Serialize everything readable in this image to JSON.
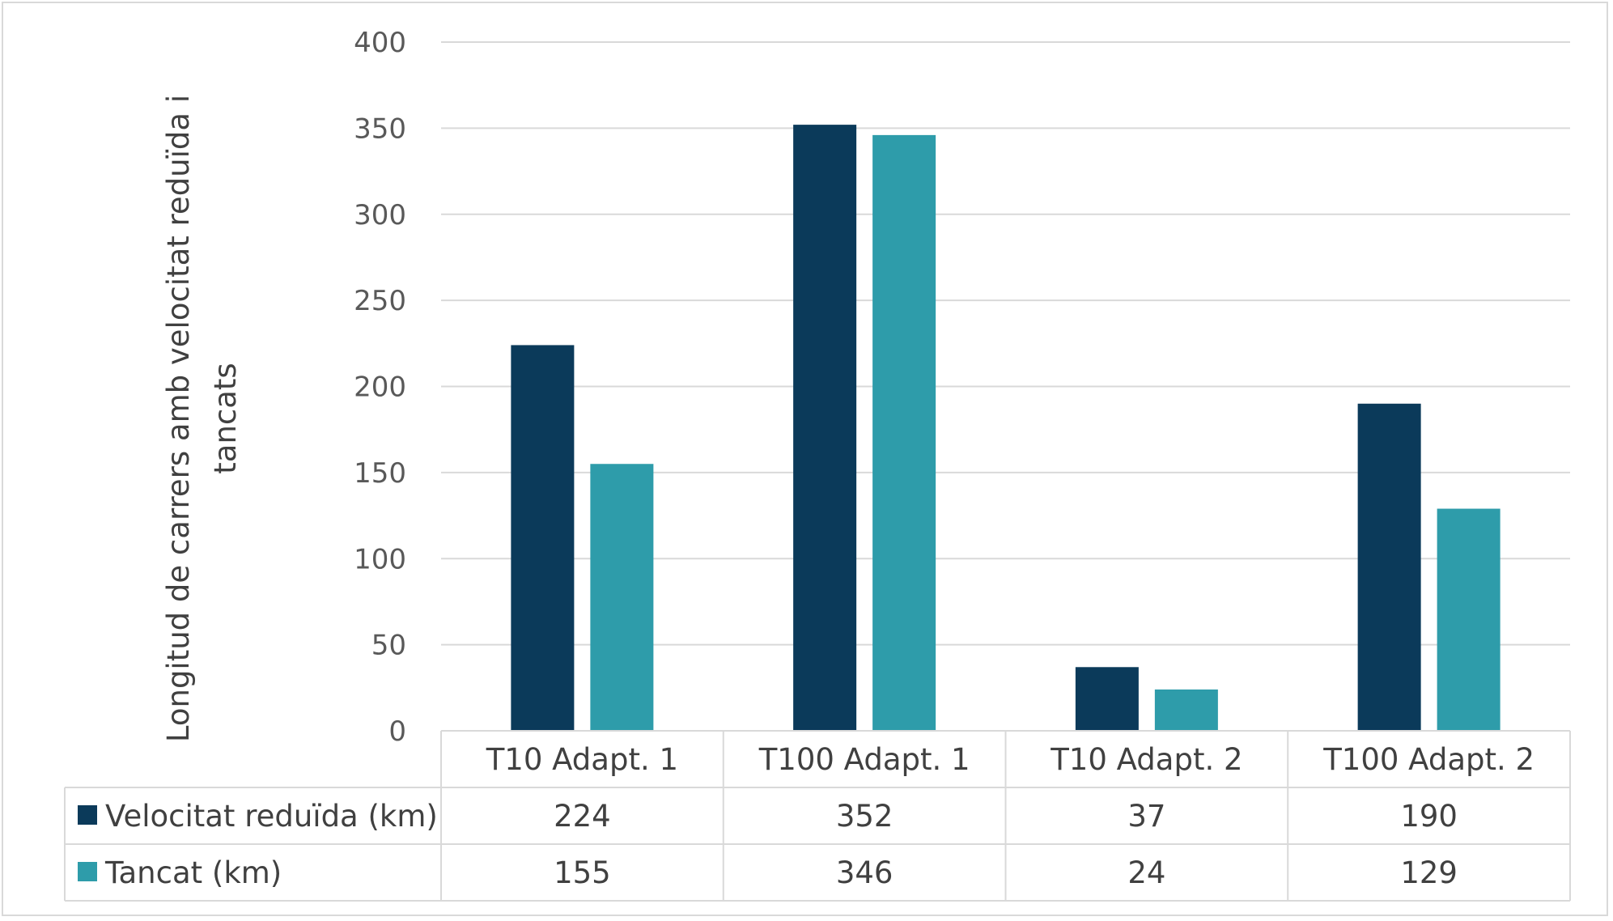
{
  "chart_data": {
    "type": "bar",
    "title": "",
    "xlabel": "",
    "ylabel": [
      "Longitud de carrers amb velocitat reduïda i",
      "tancats"
    ],
    "categories": [
      "T10 Adapt. 1",
      "T100 Adapt. 1",
      "T10 Adapt. 2",
      "T100 Adapt. 2"
    ],
    "series": [
      {
        "name": "Velocitat reduïda (km)",
        "values": [
          224,
          352,
          37,
          190
        ],
        "color": "#0b3a5a"
      },
      {
        "name": "Tancat (km)",
        "values": [
          155,
          346,
          24,
          129
        ],
        "color": "#2e9caa"
      }
    ],
    "ylim": [
      0,
      400
    ],
    "yticks": [
      0,
      50,
      100,
      150,
      200,
      250,
      300,
      350,
      400
    ],
    "grid": true,
    "legend": "data-table",
    "colors": {
      "gridline": "#d9d9d9",
      "table_border": "#d9d9d9"
    }
  }
}
